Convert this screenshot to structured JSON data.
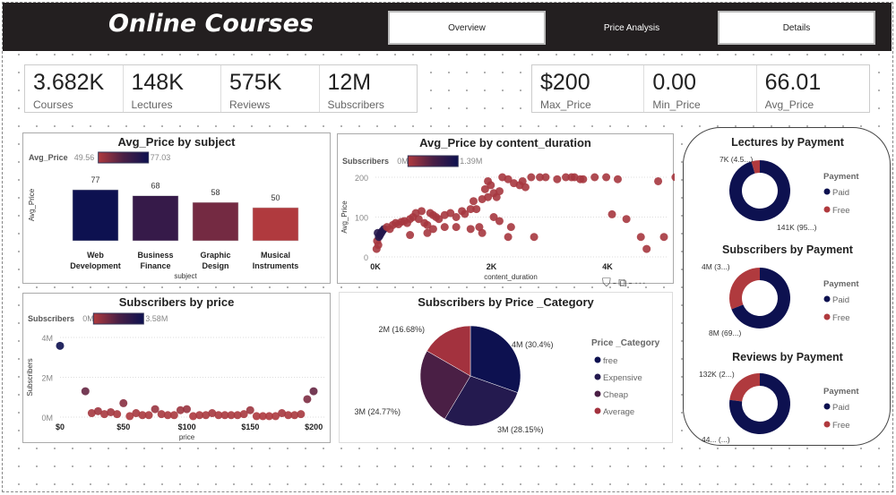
{
  "header": {
    "title": "Online Courses",
    "nav": [
      "Overview",
      "Price Analysis",
      "Details"
    ]
  },
  "kpis_left": [
    {
      "value": "3.682K",
      "label": "Courses"
    },
    {
      "value": "148K",
      "label": "Lectures"
    },
    {
      "value": "575K",
      "label": "Reviews"
    },
    {
      "value": "12M",
      "label": "Subscribers"
    }
  ],
  "kpis_right": [
    {
      "value": "$200",
      "label": "Max_Price"
    },
    {
      "value": "0.00",
      "label": "Min_Price"
    },
    {
      "value": "66.01",
      "label": "Avg_Price"
    }
  ],
  "colors": {
    "low": "#b03a3e",
    "mid": "#4a1f45",
    "high": "#0d1150"
  },
  "chart_data": [
    {
      "type": "bar",
      "title": "Avg_Price by subject",
      "xlabel": "subject",
      "ylabel": "Avg_Price",
      "legend": {
        "label": "Avg_Price",
        "min": "49.56",
        "max": "77.03"
      },
      "categories": [
        "Web Development",
        "Business Finance",
        "Graphic Design",
        "Musical Instruments"
      ],
      "category_lines": [
        [
          "Web",
          "Development"
        ],
        [
          "Business",
          "Finance"
        ],
        [
          "Graphic",
          "Design"
        ],
        [
          "Musical",
          "Instruments"
        ]
      ],
      "values": [
        77,
        68,
        58,
        50
      ],
      "data_labels": [
        "77",
        "68",
        "58",
        "50"
      ]
    },
    {
      "type": "scatter",
      "title": "Avg_Price by content_duration",
      "xlabel": "content_duration",
      "ylabel": "Avg_Price",
      "legend": {
        "label": "Subscribers",
        "min": "0M",
        "max": "1.39M"
      },
      "xticks": [
        "0K",
        "2K",
        "4K"
      ],
      "yticks": [
        "0",
        "100",
        "200"
      ],
      "xlim": [
        0,
        5000
      ],
      "ylim": [
        0,
        200
      ],
      "points": [
        [
          20,
          20
        ],
        [
          30,
          40
        ],
        [
          40,
          60
        ],
        [
          50,
          30
        ],
        [
          60,
          50
        ],
        [
          80,
          55
        ],
        [
          100,
          60
        ],
        [
          120,
          65
        ],
        [
          150,
          70
        ],
        [
          200,
          75
        ],
        [
          250,
          70
        ],
        [
          300,
          80
        ],
        [
          350,
          85
        ],
        [
          400,
          82
        ],
        [
          450,
          88
        ],
        [
          500,
          90
        ],
        [
          550,
          85
        ],
        [
          600,
          95
        ],
        [
          650,
          100
        ],
        [
          700,
          110
        ],
        [
          750,
          95
        ],
        [
          800,
          115
        ],
        [
          850,
          85
        ],
        [
          900,
          80
        ],
        [
          950,
          110
        ],
        [
          1000,
          105
        ],
        [
          1050,
          100
        ],
        [
          1100,
          95
        ],
        [
          1200,
          105
        ],
        [
          1300,
          110
        ],
        [
          1400,
          100
        ],
        [
          1500,
          115
        ],
        [
          1550,
          108
        ],
        [
          1650,
          70
        ],
        [
          1750,
          120
        ],
        [
          1800,
          75
        ],
        [
          1850,
          60
        ],
        [
          1900,
          170
        ],
        [
          1950,
          190
        ],
        [
          2000,
          180
        ],
        [
          2050,
          160
        ],
        [
          2100,
          150
        ],
        [
          2150,
          165
        ],
        [
          2200,
          200
        ],
        [
          2300,
          195
        ],
        [
          2400,
          185
        ],
        [
          2500,
          180
        ],
        [
          2550,
          190
        ],
        [
          2600,
          175
        ],
        [
          2700,
          200
        ],
        [
          2850,
          200
        ],
        [
          2950,
          200
        ],
        [
          3150,
          195
        ],
        [
          3300,
          200
        ],
        [
          3450,
          200
        ],
        [
          3600,
          195
        ],
        [
          3800,
          200
        ],
        [
          4000,
          200
        ],
        [
          4200,
          195
        ],
        [
          1700,
          140
        ],
        [
          1850,
          145
        ],
        [
          2050,
          100
        ],
        [
          2150,
          90
        ],
        [
          2300,
          50
        ],
        [
          2350,
          75
        ],
        [
          2750,
          50
        ],
        [
          3400,
          200
        ],
        [
          3550,
          195
        ],
        [
          4100,
          107
        ],
        [
          4350,
          95
        ],
        [
          4600,
          50
        ],
        [
          4700,
          20
        ],
        [
          5000,
          50
        ],
        [
          4900,
          190
        ],
        [
          5200,
          200
        ],
        [
          600,
          55
        ],
        [
          1000,
          70
        ],
        [
          1200,
          75
        ],
        [
          1400,
          75
        ],
        [
          900,
          60
        ],
        [
          1650,
          120
        ],
        [
          1950,
          150
        ]
      ]
    },
    {
      "type": "scatter",
      "title": "Subscribers by price",
      "xlabel": "price",
      "ylabel": "Subscribers",
      "legend": {
        "label": "Subscribers",
        "min": "0M",
        "max": "3.58M"
      },
      "xticks": [
        "$0",
        "$50",
        "$100",
        "$150",
        "$200"
      ],
      "yticks": [
        "0M",
        "2M",
        "4M"
      ],
      "xlim": [
        0,
        200
      ],
      "ylim": [
        0,
        4
      ],
      "points": [
        [
          0,
          3.58
        ],
        [
          20,
          1.3
        ],
        [
          25,
          0.2
        ],
        [
          30,
          0.3
        ],
        [
          35,
          0.15
        ],
        [
          40,
          0.25
        ],
        [
          45,
          0.15
        ],
        [
          50,
          0.7
        ],
        [
          55,
          0.05
        ],
        [
          60,
          0.2
        ],
        [
          65,
          0.1
        ],
        [
          70,
          0.1
        ],
        [
          75,
          0.4
        ],
        [
          80,
          0.15
        ],
        [
          85,
          0.1
        ],
        [
          90,
          0.1
        ],
        [
          95,
          0.35
        ],
        [
          100,
          0.4
        ],
        [
          105,
          0.05
        ],
        [
          110,
          0.1
        ],
        [
          115,
          0.1
        ],
        [
          120,
          0.2
        ],
        [
          125,
          0.1
        ],
        [
          130,
          0.1
        ],
        [
          135,
          0.1
        ],
        [
          140,
          0.1
        ],
        [
          145,
          0.15
        ],
        [
          150,
          0.35
        ],
        [
          155,
          0.05
        ],
        [
          160,
          0.05
        ],
        [
          165,
          0.05
        ],
        [
          170,
          0.05
        ],
        [
          175,
          0.2
        ],
        [
          180,
          0.1
        ],
        [
          185,
          0.1
        ],
        [
          190,
          0.15
        ],
        [
          195,
          0.9
        ],
        [
          200,
          1.3
        ]
      ]
    },
    {
      "type": "pie",
      "title": "Subscribers by Price _Category",
      "legend_title": "Price _Category",
      "categories": [
        "free",
        "Expensive",
        "Cheap",
        "Average"
      ],
      "values": [
        30.4,
        28.15,
        24.77,
        16.68
      ],
      "data_labels": [
        "4M (30.4%)",
        "3M (28.15%)",
        "3M (24.77%)",
        "2M (16.68%)"
      ],
      "colors": [
        "#0d1150",
        "#241a4f",
        "#4a1f45",
        "#a3323e"
      ]
    },
    {
      "type": "pie",
      "title": "Lectures by Payment",
      "legend_title": "Payment",
      "categories": [
        "Paid",
        "Free"
      ],
      "values": [
        95.5,
        4.5
      ],
      "data_labels": [
        "141K (95...)",
        "7K (4.5...)"
      ],
      "colors": [
        "#0d1150",
        "#b03a3e"
      ]
    },
    {
      "type": "pie",
      "title": "Subscribers by Payment",
      "legend_title": "Payment",
      "categories": [
        "Paid",
        "Free"
      ],
      "values": [
        69,
        31
      ],
      "data_labels": [
        "8M (69...)",
        "4M (3...)"
      ],
      "colors": [
        "#0d1150",
        "#b03a3e"
      ]
    },
    {
      "type": "pie",
      "title": "Reviews by Payment",
      "legend_title": "Payment",
      "categories": [
        "Paid",
        "Free"
      ],
      "values": [
        77,
        23
      ],
      "data_labels": [
        "44... (...)",
        "132K (2...)"
      ],
      "colors": [
        "#0d1150",
        "#b03a3e"
      ]
    }
  ]
}
